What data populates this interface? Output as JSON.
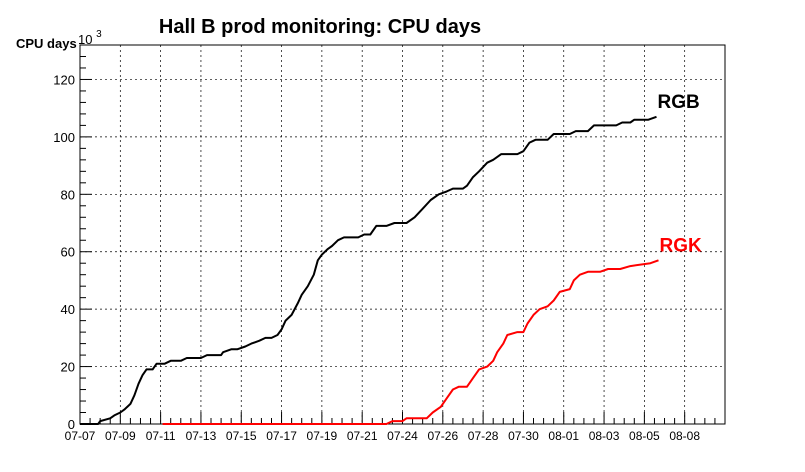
{
  "chart_data": {
    "type": "line",
    "title": "Hall B prod monitoring: CPU days",
    "ylabel": "CPU days",
    "y_exponent_label": "10",
    "y_exponent_power": "3",
    "xlabel": "",
    "ylim": [
      0,
      132
    ],
    "yticks": [
      0,
      20,
      40,
      60,
      80,
      100,
      120
    ],
    "xlim_days": [
      0,
      32
    ],
    "xticks": [
      {
        "day": 0,
        "label": "07-07"
      },
      {
        "day": 2,
        "label": "07-09"
      },
      {
        "day": 4,
        "label": "07-11"
      },
      {
        "day": 6,
        "label": "07-13"
      },
      {
        "day": 8,
        "label": "07-15"
      },
      {
        "day": 10,
        "label": "07-17"
      },
      {
        "day": 12,
        "label": "07-19"
      },
      {
        "day": 14,
        "label": "07-21"
      },
      {
        "day": 16,
        "label": "07-24"
      },
      {
        "day": 18,
        "label": "07-26"
      },
      {
        "day": 20,
        "label": "07-28"
      },
      {
        "day": 22,
        "label": "07-30"
      },
      {
        "day": 24,
        "label": "08-01"
      },
      {
        "day": 26,
        "label": "08-03"
      },
      {
        "day": 28,
        "label": "08-05"
      },
      {
        "day": 30,
        "label": "08-08"
      }
    ],
    "grid": true,
    "legend": "end-of-line labels",
    "series": [
      {
        "name": "RGB",
        "color": "#000000",
        "points": [
          [
            0.0,
            0
          ],
          [
            0.9,
            0
          ],
          [
            1.0,
            1
          ],
          [
            1.5,
            2
          ],
          [
            1.7,
            3
          ],
          [
            2.0,
            4
          ],
          [
            2.2,
            5
          ],
          [
            2.5,
            7
          ],
          [
            2.7,
            10
          ],
          [
            2.9,
            14
          ],
          [
            3.1,
            17
          ],
          [
            3.3,
            19
          ],
          [
            3.6,
            19
          ],
          [
            3.8,
            21
          ],
          [
            4.2,
            21
          ],
          [
            4.5,
            22
          ],
          [
            5.0,
            22
          ],
          [
            5.3,
            23
          ],
          [
            6.0,
            23
          ],
          [
            6.3,
            24
          ],
          [
            7.0,
            24
          ],
          [
            7.1,
            25
          ],
          [
            7.5,
            26
          ],
          [
            7.8,
            26
          ],
          [
            8.2,
            27
          ],
          [
            8.5,
            28
          ],
          [
            8.9,
            29
          ],
          [
            9.2,
            30
          ],
          [
            9.5,
            30
          ],
          [
            9.8,
            31
          ],
          [
            10.0,
            33
          ],
          [
            10.2,
            36
          ],
          [
            10.5,
            38
          ],
          [
            10.8,
            42
          ],
          [
            11.0,
            45
          ],
          [
            11.3,
            48
          ],
          [
            11.6,
            52
          ],
          [
            11.8,
            57
          ],
          [
            12.0,
            59
          ],
          [
            12.3,
            61
          ],
          [
            12.5,
            62
          ],
          [
            12.8,
            64
          ],
          [
            13.1,
            65
          ],
          [
            13.8,
            65
          ],
          [
            14.1,
            66
          ],
          [
            14.4,
            66
          ],
          [
            14.7,
            69
          ],
          [
            15.2,
            69
          ],
          [
            15.6,
            70
          ],
          [
            16.2,
            70
          ],
          [
            16.6,
            72
          ],
          [
            17.0,
            75
          ],
          [
            17.4,
            78
          ],
          [
            17.8,
            80
          ],
          [
            18.2,
            81
          ],
          [
            18.5,
            82
          ],
          [
            19.0,
            82
          ],
          [
            19.2,
            83
          ],
          [
            19.5,
            86
          ],
          [
            19.8,
            88
          ],
          [
            20.2,
            91
          ],
          [
            20.5,
            92
          ],
          [
            20.9,
            94
          ],
          [
            21.7,
            94
          ],
          [
            22.0,
            95
          ],
          [
            22.3,
            98
          ],
          [
            22.6,
            99
          ],
          [
            23.2,
            99
          ],
          [
            23.5,
            101
          ],
          [
            24.3,
            101
          ],
          [
            24.6,
            102
          ],
          [
            25.2,
            102
          ],
          [
            25.5,
            104
          ],
          [
            26.6,
            104
          ],
          [
            26.9,
            105
          ],
          [
            27.3,
            105
          ],
          [
            27.5,
            106
          ],
          [
            28.2,
            106
          ],
          [
            28.6,
            107
          ]
        ]
      },
      {
        "name": "RGK",
        "color": "#ff0000",
        "points": [
          [
            4.1,
            0
          ],
          [
            15.2,
            0
          ],
          [
            15.5,
            1
          ],
          [
            16.0,
            1
          ],
          [
            16.2,
            2
          ],
          [
            17.2,
            2
          ],
          [
            17.5,
            4
          ],
          [
            17.9,
            6
          ],
          [
            18.2,
            9
          ],
          [
            18.5,
            12
          ],
          [
            18.8,
            13
          ],
          [
            19.2,
            13
          ],
          [
            19.5,
            16
          ],
          [
            19.8,
            19
          ],
          [
            20.2,
            20
          ],
          [
            20.5,
            22
          ],
          [
            20.7,
            25
          ],
          [
            21.0,
            28
          ],
          [
            21.2,
            31
          ],
          [
            21.7,
            32
          ],
          [
            22.0,
            32
          ],
          [
            22.2,
            35
          ],
          [
            22.5,
            38
          ],
          [
            22.8,
            40
          ],
          [
            23.2,
            41
          ],
          [
            23.5,
            43
          ],
          [
            23.8,
            46
          ],
          [
            24.3,
            47
          ],
          [
            24.5,
            50
          ],
          [
            24.8,
            52
          ],
          [
            25.2,
            53
          ],
          [
            25.8,
            53
          ],
          [
            26.2,
            54
          ],
          [
            26.8,
            54
          ],
          [
            27.3,
            55
          ],
          [
            28.3,
            56
          ],
          [
            28.7,
            57
          ]
        ]
      }
    ]
  }
}
